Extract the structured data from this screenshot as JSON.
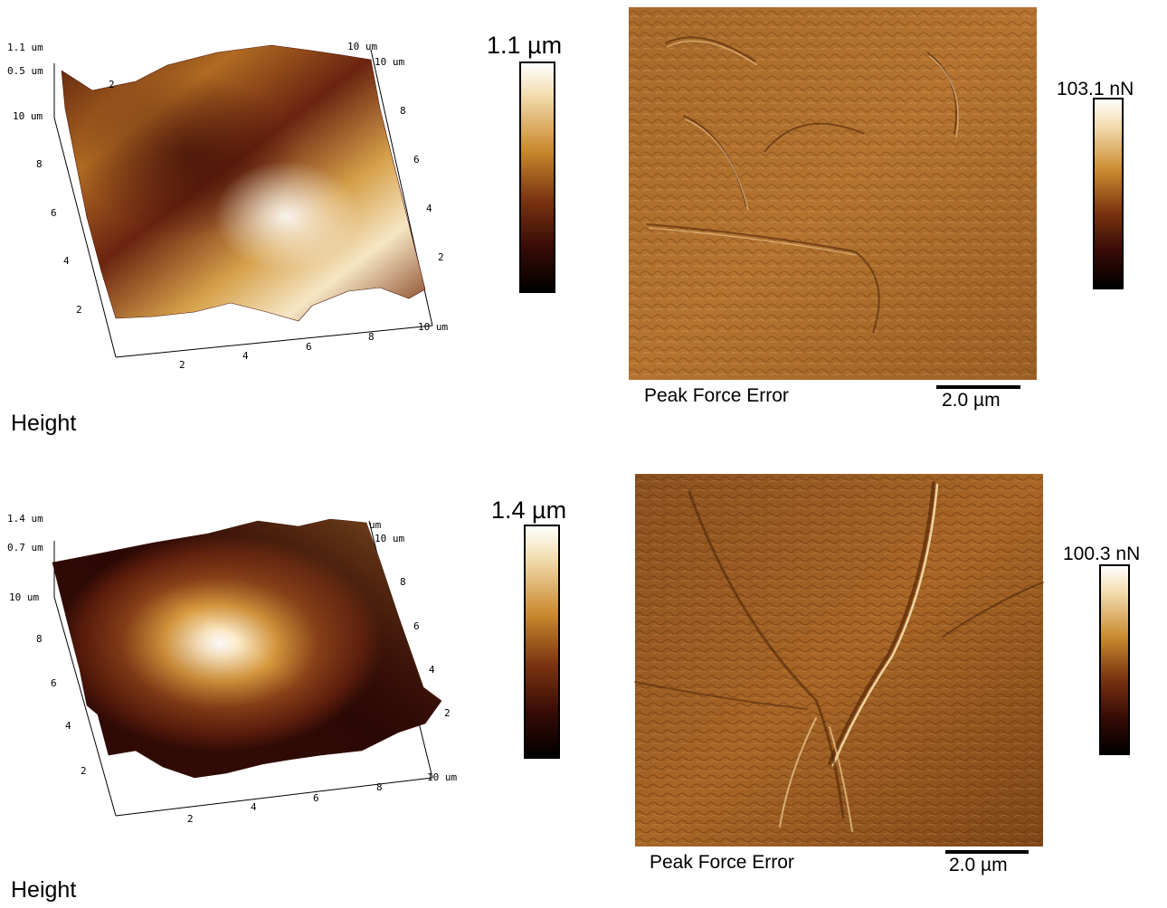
{
  "colors": {
    "dark": "#000000",
    "maroon": "#5a0e0a",
    "brown": "#8a4a14",
    "amber": "#c88a2a",
    "light": "#f0d9a8",
    "white": "#ffffff"
  },
  "panels": [
    {
      "height_label": "Height",
      "z_ticks": [
        "1.1 um",
        "0.5 um"
      ],
      "y_ticks": [
        "10 um",
        "8",
        "6",
        "4",
        "2"
      ],
      "x_ticks": [
        "2",
        "4",
        "6",
        "8",
        "10 um"
      ],
      "back_ticks": [
        "10 um",
        "10 um",
        "8",
        "6",
        "4",
        "2"
      ],
      "top_inner_tick": "2",
      "colorbar_max": "1.1 µm",
      "force_max": "103.1 nN",
      "channel": "Peak Force Error",
      "scale_bar": "2.0 µm"
    },
    {
      "height_label": "Height",
      "z_ticks": [
        "1.4 um",
        "0.7 um"
      ],
      "y_ticks": [
        "10 um",
        "8",
        "6",
        "4",
        "2"
      ],
      "x_ticks": [
        "2",
        "4",
        "6",
        "8",
        "10 um"
      ],
      "back_ticks": [
        "um",
        "10 um",
        "8",
        "6",
        "4",
        "2"
      ],
      "top_inner_tick": "",
      "colorbar_max": "1.4 µm",
      "force_max": "100.3 nN",
      "channel": "Peak Force Error",
      "scale_bar": "2.0 µm"
    }
  ]
}
